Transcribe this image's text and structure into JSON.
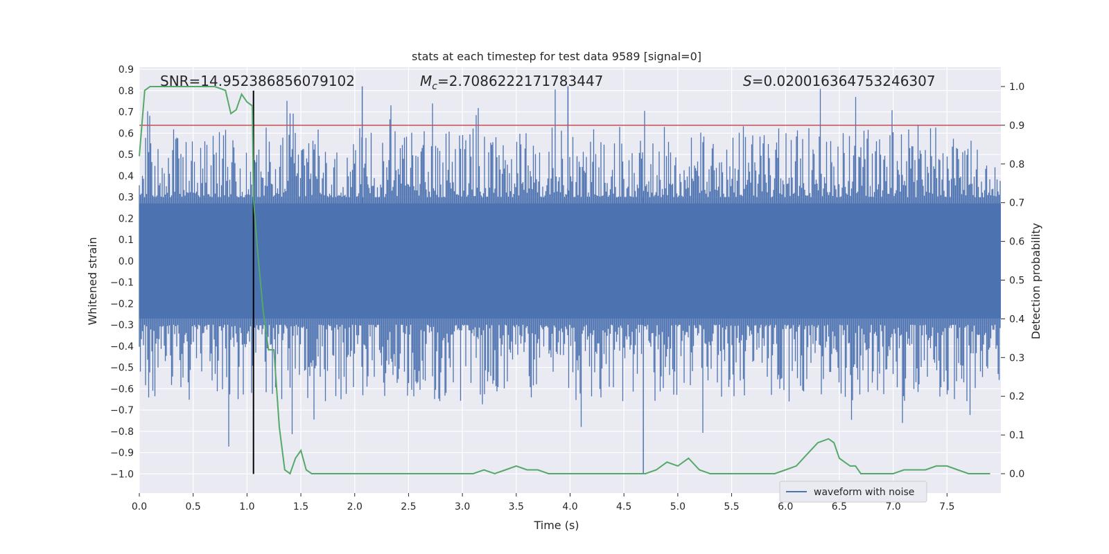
{
  "chart_data": {
    "type": "line",
    "title": "stats at each timestep for test data 9589 [signal=0]",
    "xlabel": "Time (s)",
    "ylabel_left": "Whitened strain",
    "ylabel_right": "Detection probability",
    "xlim": [
      0.0,
      8.0
    ],
    "ylim_left": [
      -1.09,
      0.91
    ],
    "ylim_right": [
      -0.05,
      1.05
    ],
    "x_ticks": [
      "0.0",
      "0.5",
      "1.0",
      "1.5",
      "2.0",
      "2.5",
      "3.0",
      "3.5",
      "4.0",
      "4.5",
      "5.0",
      "5.5",
      "6.0",
      "6.5",
      "7.0",
      "7.5"
    ],
    "x_tick_values": [
      0,
      0.5,
      1,
      1.5,
      2,
      2.5,
      3,
      3.5,
      4,
      4.5,
      5,
      5.5,
      6,
      6.5,
      7,
      7.5
    ],
    "y_left_ticks": [
      "0.9",
      "0.8",
      "0.7",
      "0.6",
      "0.5",
      "0.4",
      "0.3",
      "0.2",
      "0.1",
      "0.0",
      "−0.1",
      "−0.2",
      "−0.3",
      "−0.4",
      "−0.5",
      "−0.6",
      "−0.7",
      "−0.8",
      "−0.9",
      "−1.0"
    ],
    "y_left_tick_values": [
      0.9,
      0.8,
      0.7,
      0.6,
      0.5,
      0.4,
      0.3,
      0.2,
      0.1,
      0.0,
      -0.1,
      -0.2,
      -0.3,
      -0.4,
      -0.5,
      -0.6,
      -0.7,
      -0.8,
      -0.9,
      -1.0
    ],
    "y_right_ticks": [
      "0.0",
      "0.1",
      "0.2",
      "0.3",
      "0.4",
      "0.5",
      "0.6",
      "0.7",
      "0.8",
      "0.9",
      "1.0"
    ],
    "y_right_tick_values": [
      0,
      0.1,
      0.2,
      0.3,
      0.4,
      0.5,
      0.6,
      0.7,
      0.8,
      0.9,
      1.0
    ],
    "annotations": {
      "snr": "SNR=14.952386856079102",
      "mc_symbol": "M",
      "mc_sub": "c",
      "mc_value": "=2.7086222171783447",
      "s_symbol": "S",
      "s_value": "=0.020016364753246307"
    },
    "threshold_line": {
      "y_right": 0.9,
      "color": "#c44e52"
    },
    "marker_line": {
      "x": 1.06,
      "y_left_range": [
        -1.0,
        0.8
      ],
      "color": "#000000"
    },
    "series": [
      {
        "name": "waveform with noise",
        "axis": "left",
        "color": "#4c72b0",
        "description": "whitened noise, dense, amplitude mostly within ±0.45",
        "core_amplitude": 0.27,
        "peak_max": 0.82,
        "peak_min": -1.0
      },
      {
        "name": "detection probability",
        "axis": "right",
        "color": "#55a868",
        "x": [
          0.0,
          0.05,
          0.1,
          0.2,
          0.3,
          0.4,
          0.5,
          0.6,
          0.7,
          0.8,
          0.85,
          0.9,
          0.95,
          1.0,
          1.05,
          1.06,
          1.1,
          1.15,
          1.2,
          1.25,
          1.3,
          1.35,
          1.4,
          1.45,
          1.5,
          1.55,
          1.6,
          1.65,
          1.7,
          1.8,
          1.9,
          2.0,
          2.2,
          2.4,
          2.6,
          2.8,
          3.0,
          3.1,
          3.2,
          3.3,
          3.4,
          3.5,
          3.6,
          3.7,
          3.8,
          4.0,
          4.2,
          4.4,
          4.6,
          4.7,
          4.8,
          4.9,
          5.0,
          5.1,
          5.2,
          5.3,
          5.4,
          5.5,
          5.6,
          5.7,
          5.8,
          5.9,
          6.0,
          6.1,
          6.2,
          6.3,
          6.4,
          6.45,
          6.5,
          6.55,
          6.6,
          6.65,
          6.7,
          6.8,
          6.9,
          7.0,
          7.1,
          7.2,
          7.3,
          7.4,
          7.5,
          7.6,
          7.7,
          7.8,
          7.9
        ],
        "y": [
          0.82,
          0.99,
          1.0,
          1.0,
          1.0,
          1.0,
          1.0,
          1.0,
          1.0,
          0.99,
          0.93,
          0.94,
          0.98,
          0.96,
          0.95,
          0.71,
          0.57,
          0.42,
          0.32,
          0.32,
          0.12,
          0.01,
          0.0,
          0.04,
          0.06,
          0.01,
          0.0,
          0.0,
          0.0,
          0.0,
          0.0,
          0.0,
          0.0,
          0.0,
          0.0,
          0.0,
          0.0,
          0.0,
          0.01,
          0.0,
          0.01,
          0.02,
          0.01,
          0.01,
          0.0,
          0.0,
          0.0,
          0.0,
          0.0,
          0.0,
          0.01,
          0.03,
          0.02,
          0.04,
          0.01,
          0.0,
          0.0,
          0.0,
          0.0,
          0.0,
          0.0,
          0.0,
          0.01,
          0.02,
          0.05,
          0.08,
          0.09,
          0.08,
          0.04,
          0.03,
          0.02,
          0.02,
          0.0,
          0.0,
          0.0,
          0.0,
          0.01,
          0.01,
          0.01,
          0.02,
          0.02,
          0.01,
          0.0,
          0.0,
          0.0
        ]
      }
    ],
    "legend": {
      "position": "lower-right",
      "entries": [
        "waveform with noise"
      ]
    }
  },
  "colors": {
    "plot_bg": "#eaeaf2",
    "grid": "#ffffff",
    "wave": "#4c72b0",
    "prob": "#55a868",
    "threshold": "#c44e52"
  }
}
